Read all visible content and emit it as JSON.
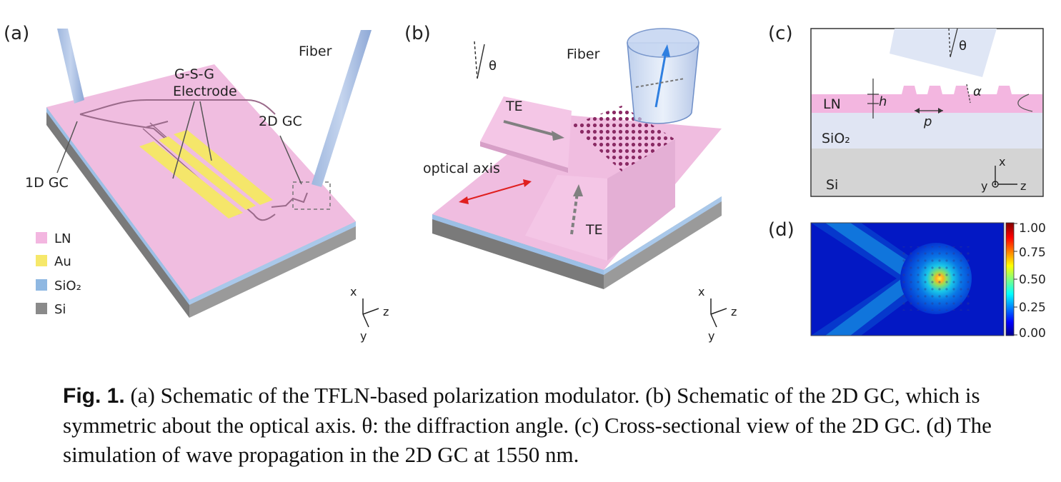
{
  "panel_a": {
    "label": "(a)",
    "fiber_label": "Fiber",
    "electrode_label_1": "G-S-G",
    "electrode_label_2": "Electrode",
    "gc2d_label": "2D GC",
    "gc1d_label": "1D GC",
    "legend": [
      {
        "label": "LN",
        "color": "#f3b6e0"
      },
      {
        "label": "Au",
        "color": "#f6e86a"
      },
      {
        "label": "SiO₂",
        "color": "#8fb8e2"
      },
      {
        "label": "Si",
        "color": "#8a8a8a"
      }
    ],
    "axes": {
      "x": "x",
      "y": "y",
      "z": "z"
    }
  },
  "panel_b": {
    "label": "(b)",
    "theta": "θ",
    "fiber_label": "Fiber",
    "te_top": "TE",
    "te_bottom": "TE",
    "optical_axis_label": "optical axis",
    "axes": {
      "x": "x",
      "y": "y",
      "z": "z"
    }
  },
  "panel_c": {
    "label": "(c)",
    "theta": "θ",
    "ln": "LN",
    "h": "h",
    "p": "p",
    "alpha": "α",
    "sio2": "SiO₂",
    "si": "Si",
    "axes": {
      "x": "x",
      "y": "y",
      "z": "z"
    }
  },
  "panel_d": {
    "label": "(d)",
    "colorbar_ticks": [
      "1.00",
      "0.75",
      "0.50",
      "0.25",
      "0.00"
    ]
  },
  "caption": {
    "lead": "Fig. 1.",
    "text": " (a) Schematic of the TFLN-based polarization modulator. (b) Schematic of the 2D GC, which is symmetric about the optical axis. θ: the diffraction angle. (c) Cross-sectional view of the 2D GC. (d) The simulation of wave propagation in the 2D GC at 1550 nm."
  }
}
